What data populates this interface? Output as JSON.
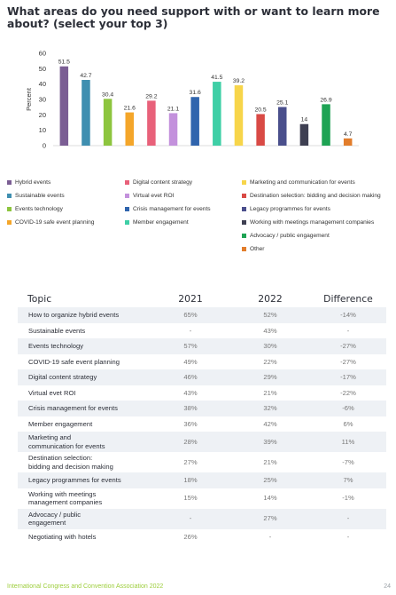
{
  "page": {
    "title": "What areas do you need support with or want to learn more about? (select your top 3)",
    "footer": "International Congress and Convention Association 2022",
    "page_number": "24"
  },
  "chart_data": {
    "type": "bar",
    "ylabel": "Percent",
    "ylim": [
      0,
      60
    ],
    "yticks": [
      0,
      10,
      20,
      30,
      40,
      50,
      60
    ],
    "grid": false,
    "legend_position": "bottom",
    "series": [
      {
        "name": "Hybrid events",
        "value": 51.5,
        "color": "#7b5e94"
      },
      {
        "name": "Sustainable events",
        "value": 42.7,
        "color": "#3f8fb0"
      },
      {
        "name": "Events technology",
        "value": 30.4,
        "color": "#8dc53e"
      },
      {
        "name": "COVID-19 safe event planning",
        "value": 21.6,
        "color": "#f4a62a"
      },
      {
        "name": "Digital content strategy",
        "value": 29.2,
        "color": "#e8617a"
      },
      {
        "name": "Virtual evet ROI",
        "value": 21.1,
        "color": "#c391dc"
      },
      {
        "name": "Crisis management for events",
        "value": 31.6,
        "color": "#2f64ad"
      },
      {
        "name": "Member engagement",
        "value": 41.5,
        "color": "#3fcfa6"
      },
      {
        "name": "Marketing and communication for events",
        "value": 39.2,
        "color": "#f7d54a"
      },
      {
        "name": "Destination selection: bidding and decision making",
        "value": 20.5,
        "color": "#d94a45"
      },
      {
        "name": "Legacy programmes for events",
        "value": 25.1,
        "color": "#4a4f8c"
      },
      {
        "name": "Working with meetings management companies",
        "value": 14,
        "color": "#3e3f52"
      },
      {
        "name": "Advocacy / public engagement",
        "value": 26.9,
        "color": "#1ea354"
      },
      {
        "name": "Other",
        "value": 4.7,
        "color": "#e27d2b"
      }
    ]
  },
  "table": {
    "headers": [
      "Topic",
      "2021",
      "2022",
      "Difference"
    ],
    "rows": [
      {
        "lines": [
          "How to organize hybrid events"
        ],
        "y2021": "65%",
        "y2022": "52%",
        "diff": "-14%"
      },
      {
        "lines": [
          "Sustainable events"
        ],
        "y2021": "-",
        "y2022": "43%",
        "diff": "-"
      },
      {
        "lines": [
          "Events technology"
        ],
        "y2021": "57%",
        "y2022": "30%",
        "diff": "-27%"
      },
      {
        "lines": [
          "COVID-19 safe event planning"
        ],
        "y2021": "49%",
        "y2022": "22%",
        "diff": "-27%"
      },
      {
        "lines": [
          "Digital content strategy"
        ],
        "y2021": "46%",
        "y2022": "29%",
        "diff": "-17%"
      },
      {
        "lines": [
          "Virtual evet ROI"
        ],
        "y2021": "43%",
        "y2022": "21%",
        "diff": "-22%"
      },
      {
        "lines": [
          "Crisis management for events"
        ],
        "y2021": "38%",
        "y2022": "32%",
        "diff": "-6%"
      },
      {
        "lines": [
          "Member engagement"
        ],
        "y2021": "36%",
        "y2022": "42%",
        "diff": "6%"
      },
      {
        "lines": [
          "Marketing and",
          "communication for events"
        ],
        "y2021": "28%",
        "y2022": "39%",
        "diff": "11%"
      },
      {
        "lines": [
          "Destination selection:",
          "bidding and decision making"
        ],
        "y2021": "27%",
        "y2022": "21%",
        "diff": "-7%"
      },
      {
        "lines": [
          "Legacy programmes for events"
        ],
        "y2021": "18%",
        "y2022": "25%",
        "diff": "7%"
      },
      {
        "lines": [
          "Working with meetings",
          "management companies"
        ],
        "y2021": "15%",
        "y2022": "14%",
        "diff": "-1%"
      },
      {
        "lines": [
          "Advocacy / public",
          "engagement"
        ],
        "y2021": "-",
        "y2022": "27%",
        "diff": "-"
      },
      {
        "lines": [
          "Negotiating with hotels"
        ],
        "y2021": "26%",
        "y2022": "-",
        "diff": "-"
      }
    ]
  }
}
